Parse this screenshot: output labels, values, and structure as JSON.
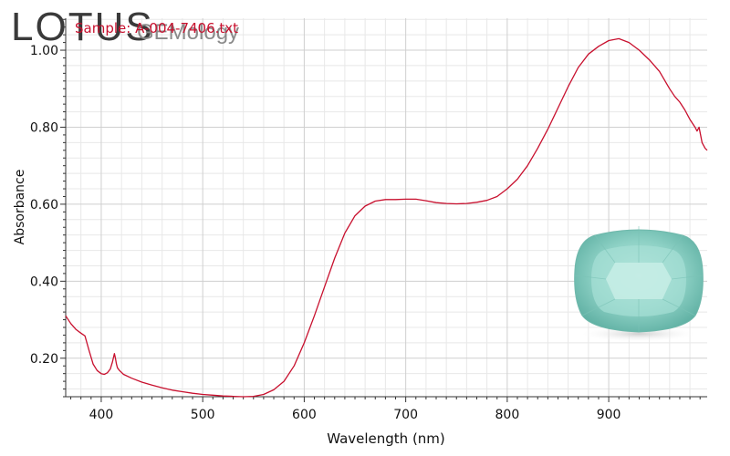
{
  "logo": {
    "main": "LOTUS",
    "sub": "GEMology"
  },
  "sample_label": "Sample: A-004-7406.txt",
  "colors": {
    "line": "#c8102e",
    "grid_major": "#cfcfcf",
    "grid_minor": "#e8e8e8",
    "axis": "#333333"
  },
  "gem_image": "cushion-cut-light-bluish-green-gemstone",
  "chart_data": {
    "type": "line",
    "xlabel": "Wavelength (nm)",
    "ylabel": "Absorbance",
    "xlim": [
      365,
      997
    ],
    "ylim": [
      0.1,
      1.083
    ],
    "xticks": [
      400,
      500,
      600,
      700,
      800,
      900
    ],
    "xtick_labels": [
      "400",
      "500",
      "600",
      "700",
      "800",
      "900"
    ],
    "yticks": [
      0.2,
      0.4,
      0.6,
      0.8,
      1.0
    ],
    "ytick_labels": [
      "0.20",
      "0.40",
      "0.60",
      "0.80",
      "1.00"
    ],
    "grid": true,
    "series": [
      {
        "x": [
          365,
          370,
          375,
          380,
          384,
          388,
          392,
          396,
          400,
          403,
          406,
          409,
          411,
          413,
          414,
          415,
          416,
          418,
          422,
          430,
          440,
          450,
          460,
          470,
          480,
          490,
          500,
          510,
          520,
          530,
          540,
          550,
          560,
          570,
          580,
          590,
          600,
          610,
          620,
          630,
          640,
          650,
          660,
          670,
          680,
          690,
          700,
          710,
          720,
          730,
          740,
          750,
          760,
          770,
          780,
          790,
          800,
          810,
          820,
          830,
          840,
          850,
          860,
          870,
          880,
          890,
          900,
          910,
          920,
          930,
          940,
          950,
          960,
          965,
          970,
          975,
          980,
          985,
          987,
          989,
          992,
          995,
          997
        ],
        "y": [
          0.31,
          0.29,
          0.275,
          0.265,
          0.258,
          0.22,
          0.185,
          0.168,
          0.16,
          0.158,
          0.162,
          0.172,
          0.19,
          0.212,
          0.2,
          0.185,
          0.175,
          0.168,
          0.158,
          0.148,
          0.138,
          0.13,
          0.123,
          0.117,
          0.113,
          0.109,
          0.106,
          0.104,
          0.102,
          0.101,
          0.1,
          0.101,
          0.106,
          0.118,
          0.14,
          0.18,
          0.24,
          0.31,
          0.385,
          0.46,
          0.525,
          0.57,
          0.595,
          0.608,
          0.612,
          0.612,
          0.613,
          0.613,
          0.609,
          0.604,
          0.602,
          0.601,
          0.602,
          0.605,
          0.61,
          0.62,
          0.64,
          0.665,
          0.7,
          0.745,
          0.795,
          0.85,
          0.905,
          0.955,
          0.99,
          1.01,
          1.025,
          1.03,
          1.02,
          1.0,
          0.975,
          0.945,
          0.9,
          0.88,
          0.865,
          0.845,
          0.82,
          0.8,
          0.79,
          0.8,
          0.76,
          0.745,
          0.74
        ]
      }
    ]
  }
}
